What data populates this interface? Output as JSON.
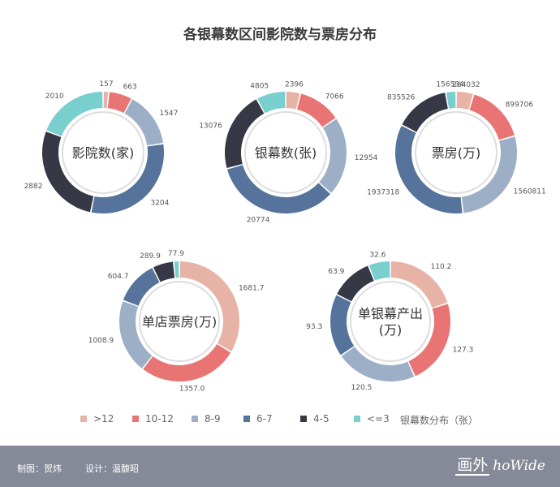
{
  "title": "各银幕数区间影院数与票房分布",
  "colors": [
    "#e8b3a7",
    "#e87474",
    "#9dafc6",
    "#56739b",
    "#363945",
    "#79cece"
  ],
  "legend": {
    "items": [
      ">12",
      "10-12",
      "8-9",
      "6-7",
      "4-5",
      "<=3"
    ],
    "note": "银幕数分布（张）"
  },
  "chart_data": [
    {
      "type": "pie",
      "center_label": [
        "影院数(家)"
      ],
      "categories": [
        ">12",
        "10-12",
        "8-9",
        "6-7",
        "4-5",
        "<=3"
      ],
      "values": [
        157,
        663,
        1547,
        3204,
        2882,
        2010
      ],
      "value_labels": [
        "157",
        "663",
        "1547",
        "3204",
        "2882",
        "2010"
      ]
    },
    {
      "type": "pie",
      "center_label": [
        "银幕数(张)"
      ],
      "categories": [
        ">12",
        "10-12",
        "8-9",
        "6-7",
        "4-5",
        "<=3"
      ],
      "values": [
        2396,
        7066,
        12954,
        20774,
        13076,
        4805
      ],
      "value_labels": [
        "2396",
        "7066",
        "12954",
        "20774",
        "13076",
        "4805"
      ]
    },
    {
      "type": "pie",
      "center_label": [
        "票房(万)"
      ],
      "categories": [
        ">12",
        "10-12",
        "8-9",
        "6-7",
        "4-5",
        "<=3"
      ],
      "values": [
        264032,
        899706,
        1560811,
        1937318,
        835526,
        156534
      ],
      "value_labels": [
        "264032",
        "899706",
        "1560811",
        "1937318",
        "835526",
        "156534"
      ]
    },
    {
      "type": "pie",
      "center_label": [
        "单店票房(万)"
      ],
      "categories": [
        ">12",
        "10-12",
        "8-9",
        "6-7",
        "4-5",
        "<=3"
      ],
      "values": [
        1681.7,
        1357.0,
        1008.9,
        604.7,
        289.9,
        77.9
      ],
      "value_labels": [
        "1681.7",
        "1357.0",
        "1008.9",
        "604.7",
        "289.9",
        "77.9"
      ]
    },
    {
      "type": "pie",
      "center_label": [
        "单银幕产出",
        "(万)"
      ],
      "categories": [
        ">12",
        "10-12",
        "8-9",
        "6-7",
        "4-5",
        "<=3"
      ],
      "values": [
        110.2,
        127.3,
        120.5,
        93.3,
        63.9,
        32.6
      ],
      "value_labels": [
        "110.2",
        "127.3",
        "120.5",
        "93.3",
        "63.9",
        "32.6"
      ]
    }
  ],
  "footer": {
    "credit_chart": "制图：贺炜",
    "credit_design": "设计：温馥昭",
    "logo_cn": "画外",
    "logo_en": "hoWide"
  }
}
